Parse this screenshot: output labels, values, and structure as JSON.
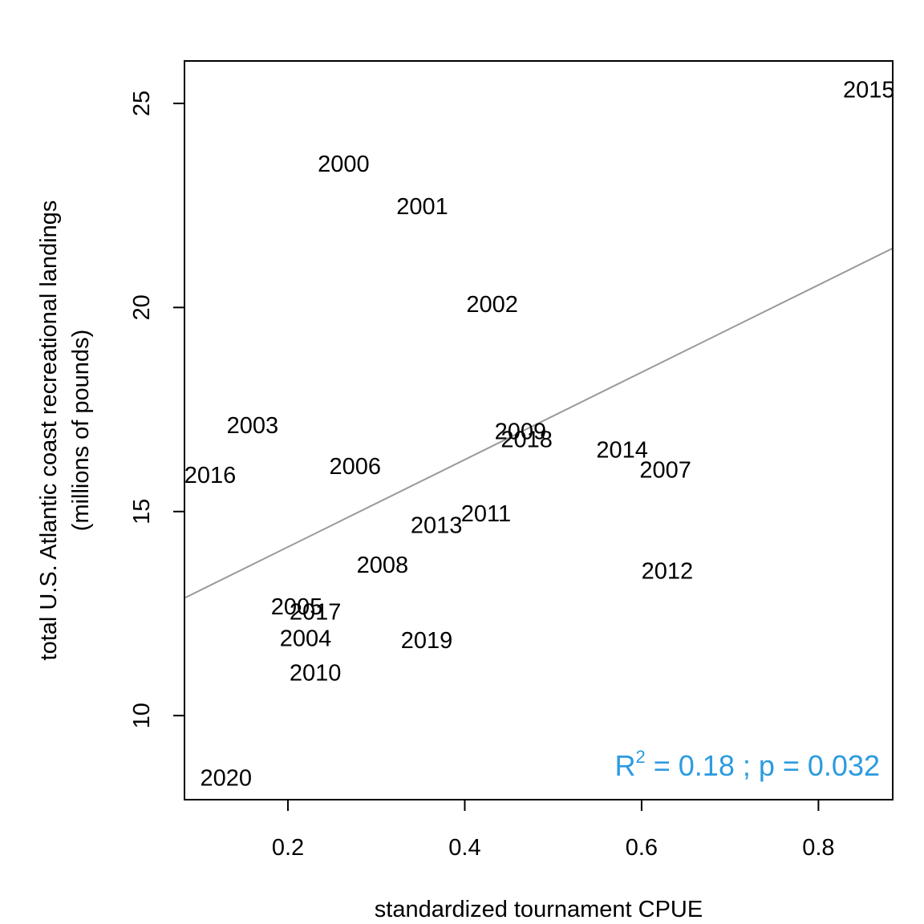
{
  "chart_data": {
    "type": "scatter",
    "title": "",
    "xlabel": "standardized tournament CPUE",
    "ylabel_line1": "total U.S. Atlantic coast recreational landings",
    "ylabel_line2": "(millions of pounds)",
    "xlim": [
      0.083,
      0.884
    ],
    "ylim": [
      7.94,
      26.04
    ],
    "x_ticks": [
      0.2,
      0.4,
      0.6,
      0.8
    ],
    "x_tick_labels": [
      "0.2",
      "0.4",
      "0.6",
      "0.8"
    ],
    "y_ticks": [
      10,
      15,
      20,
      25
    ],
    "y_tick_labels": [
      "10",
      "15",
      "20",
      "25"
    ],
    "grid": false,
    "legend": "none",
    "point_marker": "year labels",
    "points": [
      {
        "label": "2000",
        "x": 0.263,
        "y": 23.5
      },
      {
        "label": "2001",
        "x": 0.352,
        "y": 22.46
      },
      {
        "label": "2002",
        "x": 0.431,
        "y": 20.07
      },
      {
        "label": "2003",
        "x": 0.16,
        "y": 17.1
      },
      {
        "label": "2004",
        "x": 0.22,
        "y": 11.88
      },
      {
        "label": "2005",
        "x": 0.21,
        "y": 12.66
      },
      {
        "label": "2006",
        "x": 0.276,
        "y": 16.1
      },
      {
        "label": "2007",
        "x": 0.627,
        "y": 16.01
      },
      {
        "label": "2008",
        "x": 0.307,
        "y": 13.68
      },
      {
        "label": "2009",
        "x": 0.463,
        "y": 16.95
      },
      {
        "label": "2010",
        "x": 0.231,
        "y": 11.04
      },
      {
        "label": "2011",
        "x": 0.424,
        "y": 14.94
      },
      {
        "label": "2012",
        "x": 0.629,
        "y": 13.53
      },
      {
        "label": "2013",
        "x": 0.368,
        "y": 14.65
      },
      {
        "label": "2014",
        "x": 0.578,
        "y": 16.5
      },
      {
        "label": "2015",
        "x": 0.857,
        "y": 25.32
      },
      {
        "label": "2016",
        "x": 0.112,
        "y": 15.88
      },
      {
        "label": "2017",
        "x": 0.231,
        "y": 12.53
      },
      {
        "label": "2018",
        "x": 0.47,
        "y": 16.75
      },
      {
        "label": "2019",
        "x": 0.357,
        "y": 11.83
      },
      {
        "label": "2020",
        "x": 0.13,
        "y": 8.46
      }
    ],
    "regression_line": {
      "x": [
        0.083,
        0.884
      ],
      "y": [
        12.88,
        21.45
      ],
      "color": "#999999"
    },
    "annotation": {
      "r_symbol": "R",
      "r_superscript": "2",
      "text_after": " = 0.18 ;  p = 0.032",
      "color": "#2b9be0",
      "position": "bottom-right"
    }
  }
}
